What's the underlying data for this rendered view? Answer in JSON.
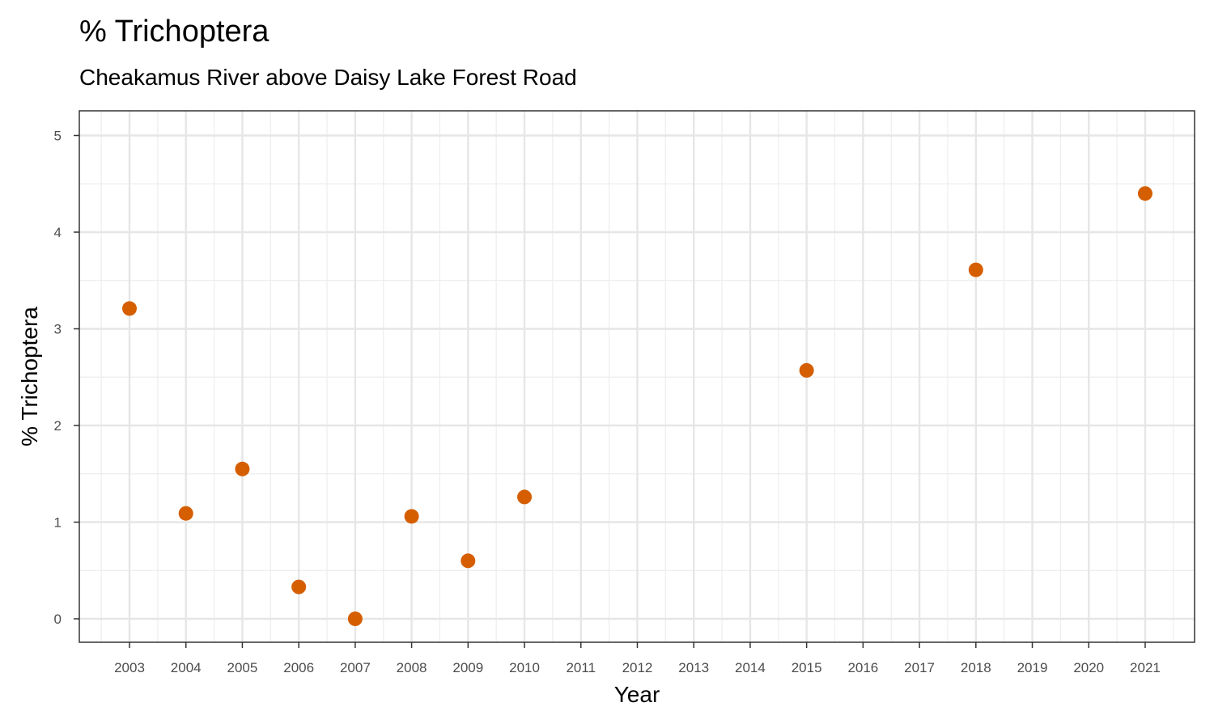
{
  "chart_data": {
    "type": "scatter",
    "title": "% Trichoptera",
    "subtitle": "Cheakamus River above Daisy Lake Forest Road",
    "xlabel": "Year",
    "ylabel": "% Trichoptera",
    "x_ticks": [
      "2003",
      "2004",
      "2005",
      "2006",
      "2007",
      "2008",
      "2009",
      "2010",
      "2011",
      "2012",
      "2013",
      "2014",
      "2015",
      "2016",
      "2017",
      "2018",
      "2019",
      "2020",
      "2021"
    ],
    "y_ticks": [
      "0",
      "1",
      "2",
      "3",
      "4",
      "5"
    ],
    "ylim": [
      0,
      5
    ],
    "grid": true,
    "point_color": "#D55E00",
    "points": [
      {
        "x": "2003",
        "y": 3.21
      },
      {
        "x": "2004",
        "y": 1.09
      },
      {
        "x": "2005",
        "y": 1.55
      },
      {
        "x": "2006",
        "y": 0.33
      },
      {
        "x": "2007",
        "y": 0.0
      },
      {
        "x": "2008",
        "y": 1.06
      },
      {
        "x": "2009",
        "y": 0.6
      },
      {
        "x": "2010",
        "y": 1.26
      },
      {
        "x": "2015",
        "y": 2.57
      },
      {
        "x": "2018",
        "y": 3.61
      },
      {
        "x": "2021",
        "y": 4.4
      }
    ]
  }
}
